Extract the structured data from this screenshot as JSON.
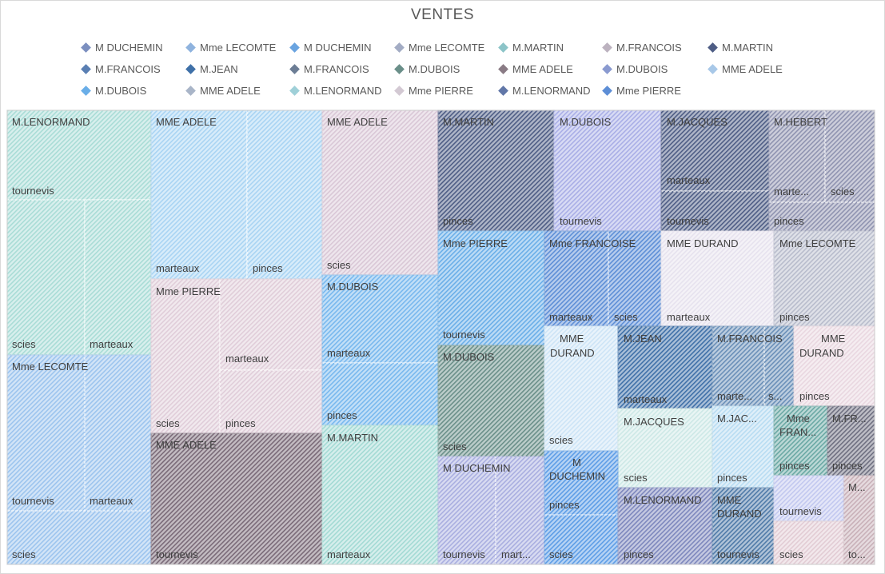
{
  "chart_data": {
    "type": "treemap",
    "title": "VENTES",
    "legend_position": "top",
    "legend": [
      {
        "name": "M DUCHEMIN",
        "color": "#7b8fbf"
      },
      {
        "name": "Mme LECOMTE",
        "color": "#8fb3de"
      },
      {
        "name": "M DUCHEMIN",
        "color": "#6aa4e0"
      },
      {
        "name": "Mme LECOMTE",
        "color": "#a3acc4"
      },
      {
        "name": "M.MARTIN",
        "color": "#8cc4c8"
      },
      {
        "name": "M.FRANCOIS",
        "color": "#bcb2bf"
      },
      {
        "name": "M.MARTIN",
        "color": "#4e5d85"
      },
      {
        "name": "M.FRANCOIS",
        "color": "#5a7fb3"
      },
      {
        "name": "M.JEAN",
        "color": "#3f70a8"
      },
      {
        "name": "M.FRANCOIS",
        "color": "#6c7d95"
      },
      {
        "name": "M.DUBOIS",
        "color": "#6a8f89"
      },
      {
        "name": "MME ADELE",
        "color": "#8a7b85"
      },
      {
        "name": "M.DUBOIS",
        "color": "#8a9ad0"
      },
      {
        "name": "MME ADELE",
        "color": "#a8c8e8"
      },
      {
        "name": "M.DUBOIS",
        "color": "#6aaee8"
      },
      {
        "name": "MME ADELE",
        "color": "#a9b5c8"
      },
      {
        "name": "M.LENORMAND",
        "color": "#9fd0d8"
      },
      {
        "name": "Mme PIERRE",
        "color": "#d3c9d3"
      },
      {
        "name": "M.LENORMAND",
        "color": "#6177a8"
      },
      {
        "name": "Mme PIERRE",
        "color": "#5d8ed6"
      }
    ],
    "groups": [
      {
        "name": "M.LENORMAND",
        "color": "#a9dcd6",
        "items": [
          "tournevis",
          "scies",
          "marteaux"
        ]
      },
      {
        "name": "Mme LECOMTE",
        "color": "#9cc4ee",
        "items": [
          "tournevis",
          "marteaux",
          "scies"
        ]
      },
      {
        "name": "MME ADELE",
        "color": "#a9d4f3",
        "items": [
          "marteaux",
          "pinces"
        ]
      },
      {
        "name": "Mme PIERRE",
        "color": "#e0cdd9",
        "items": [
          "scies",
          "marteaux",
          "pinces"
        ]
      },
      {
        "name": "MME ADELE",
        "color": "#7a6a78",
        "items": [
          "tournevis"
        ]
      },
      {
        "name": "MME ADELE",
        "color": "#d9c7d6",
        "items": [
          "scies"
        ]
      },
      {
        "name": "M.DUBOIS",
        "color": "#78b8ee",
        "items": [
          "marteaux",
          "pinces"
        ]
      },
      {
        "name": "M.MARTIN",
        "color": "#a3dad4",
        "items": [
          "marteaux"
        ]
      },
      {
        "name": "M.MARTIN",
        "color": "#4e5d85",
        "items": [
          "pinces"
        ]
      },
      {
        "name": "M.DUBOIS",
        "color": "#a9aee6",
        "items": [
          "tournevis"
        ]
      },
      {
        "name": "M.JACQUES",
        "color": "#4e5d85",
        "items": [
          "marteaux",
          "tournevis"
        ]
      },
      {
        "name": "M.HEBERT",
        "color": "#8f93b0",
        "items": [
          "marte...",
          "scies",
          "pinces"
        ]
      },
      {
        "name": "Mme PIERRE",
        "color": "#6aaee8",
        "items": [
          "tournevis"
        ]
      },
      {
        "name": "Mme FRANCOISE",
        "color": "#5d8ed6",
        "items": [
          "marteaux",
          "scies"
        ]
      },
      {
        "name": "MME DURAND",
        "color": "#e6e2ee",
        "items": [
          "marteaux"
        ]
      },
      {
        "name": "Mme LECOMTE",
        "color": "#b8bccc",
        "items": [
          "pinces"
        ]
      },
      {
        "name": "M.DUBOIS",
        "color": "#6a8f89",
        "items": [
          "scies"
        ]
      },
      {
        "name": "MME DURAND",
        "color": "#cde4f6",
        "items": [
          "scies"
        ]
      },
      {
        "name": "M.JEAN",
        "color": "#3f70a8",
        "items": [
          "marteaux"
        ]
      },
      {
        "name": "M.FRANCOIS",
        "color": "#6a8fb8",
        "items": [
          "marte...",
          "s..."
        ]
      },
      {
        "name": "MME DURAND",
        "color": "#e9d7e0",
        "items": [
          "pinces"
        ]
      },
      {
        "name": "M.JACQUES",
        "color": "#cde8e6",
        "items": [
          "scies"
        ]
      },
      {
        "name": "M.JAC...",
        "color": "#b8dcf2",
        "items": [
          "pinces"
        ]
      },
      {
        "name": "Mme FRAN...",
        "color": "#6aa8a4",
        "items": [
          "pinces"
        ]
      },
      {
        "name": "M.FR...",
        "color": "#6e6f80",
        "items": [
          "pinces"
        ]
      },
      {
        "name": "M DUCHEMIN",
        "color": "#a9aee0",
        "items": [
          "tournevis",
          "mart..."
        ]
      },
      {
        "name": "M DUCHEMIN",
        "color": "#5d9de6",
        "items": [
          "pinces",
          "scies"
        ]
      },
      {
        "name": "M.LENORMAND",
        "color": "#7d87bd",
        "items": [
          "pinces"
        ]
      },
      {
        "name": "MME DURAND",
        "color": "#4f7aa8",
        "items": [
          "tournevis"
        ]
      },
      {
        "name": "M...",
        "color": "#c8b0b8",
        "items": [
          "to..."
        ]
      },
      {
        "name": "",
        "color": "#c2c8ef",
        "items": [
          "tournevis"
        ]
      },
      {
        "name": "",
        "color": "#e2ccd4",
        "items": [
          "scies"
        ]
      }
    ]
  }
}
